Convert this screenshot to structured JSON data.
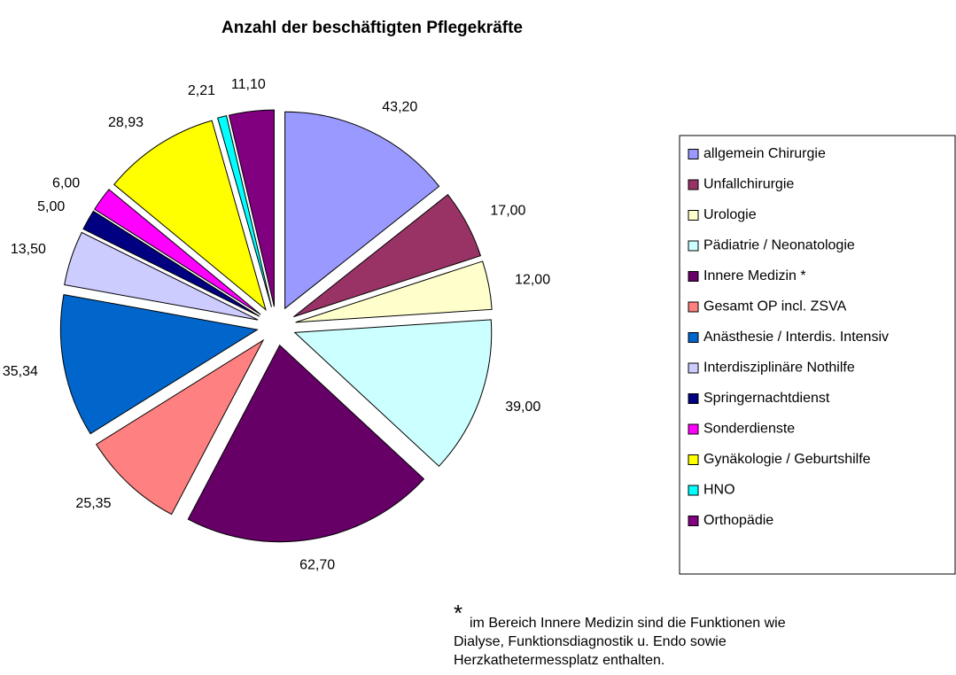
{
  "chart_data": {
    "type": "pie",
    "title": "Anzahl der beschäftigten Pflegekräfte",
    "categories": [
      "allgemein Chirurgie",
      "Unfallchirurgie",
      "Urologie",
      "Pädiatrie / Neonatologie",
      "Innere Medizin *",
      "Gesamt OP incl. ZSVA",
      "Anästhesie / Interdis. Intensiv",
      "Interdisziplinäre Nothilfe",
      "Springernachtdienst",
      "Sonderdienste",
      "Gynäkologie / Geburtshilfe",
      "HNO",
      "Orthopädie"
    ],
    "values": [
      43.2,
      17,
      12,
      39,
      62.7,
      25.35,
      35.34,
      13.5,
      5,
      6,
      28.93,
      2.21,
      11.1
    ],
    "value_labels": [
      "43,20",
      "17,00",
      "12,00",
      "39,00",
      "62,70",
      "25,35",
      "35,34",
      "13,50",
      "5,00",
      "6,00",
      "28,93",
      "2,21",
      "11,10"
    ],
    "colors": [
      "#9999ff",
      "#993366",
      "#ffffcc",
      "#ccffff",
      "#660066",
      "#ff8080",
      "#0066cc",
      "#ccccff",
      "#000080",
      "#ff00ff",
      "#ffff00",
      "#00ffff",
      "#800080"
    ],
    "legend": "right"
  },
  "note": {
    "marker": "*",
    "lines": [
      "im Bereich Innere Medizin sind die Funktionen wie",
      "Dialyse, Funktionsdiagnostik u. Endo sowie",
      "Herzkathetermessplatz enthalten."
    ]
  }
}
